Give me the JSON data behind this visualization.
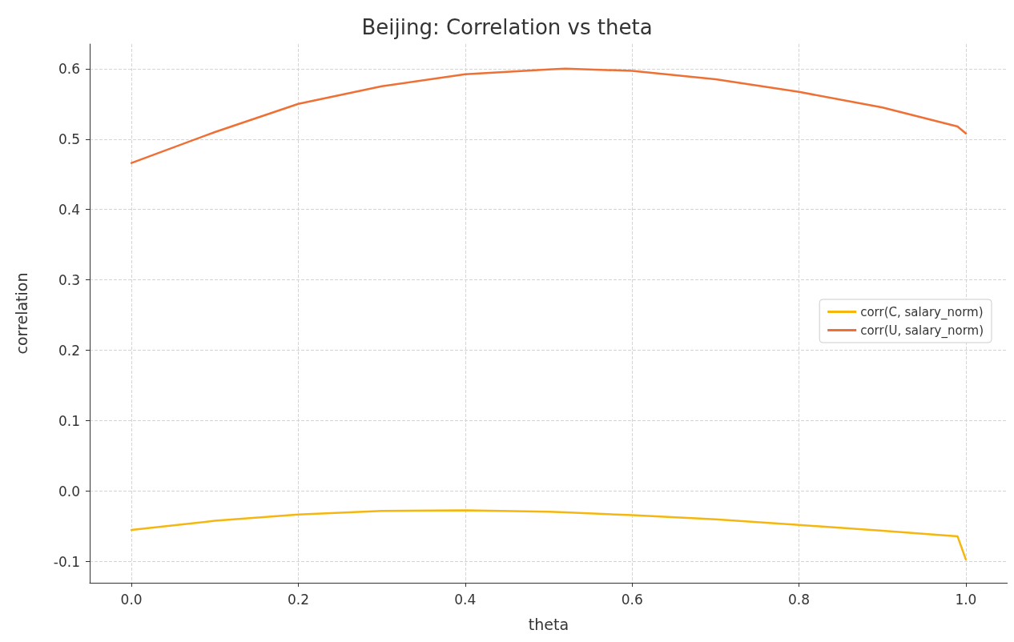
{
  "chart_data": {
    "type": "line",
    "title": "Beijing: Correlation vs theta",
    "xlabel": "theta",
    "ylabel": "correlation",
    "x": [
      0,
      0.1,
      0.2,
      0.3,
      0.4,
      0.5,
      0.52,
      0.6,
      0.7,
      0.8,
      0.9,
      0.99,
      1.0
    ],
    "series": [
      {
        "name": "corr(C, salary_norm)",
        "color": "#f5b70f",
        "values": [
          -0.055,
          -0.042,
          -0.033,
          -0.028,
          -0.027,
          -0.029,
          -0.03,
          -0.034,
          -0.04,
          -0.048,
          -0.056,
          -0.064,
          -0.097
        ]
      },
      {
        "name": "corr(U, salary_norm)",
        "color": "#ee7035",
        "values": [
          0.466,
          0.51,
          0.55,
          0.575,
          0.592,
          0.599,
          0.6,
          0.597,
          0.585,
          0.567,
          0.545,
          0.518,
          0.508
        ]
      }
    ],
    "xlim": [
      -0.05,
      1.05
    ],
    "xticks": [
      {
        "value": 0,
        "label": "0.0"
      },
      0.2,
      0.4,
      0.6,
      0.8,
      {
        "value": 1,
        "label": "1.0"
      }
    ],
    "ylim": [
      -0.13,
      0.635
    ],
    "yticks": [
      -0.1,
      {
        "value": 0,
        "label": "0.0"
      },
      0.1,
      0.2,
      0.3,
      0.4,
      0.5,
      0.6
    ],
    "grid": true,
    "legend": "right",
    "marker": "none",
    "line_style": "solid"
  }
}
